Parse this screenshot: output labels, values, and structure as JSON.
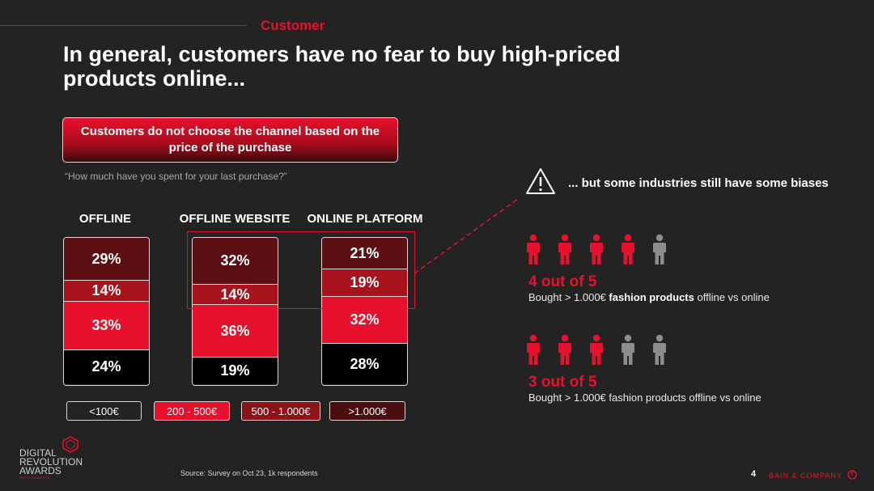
{
  "header": {
    "section": "Customer",
    "title_line1": "In general, customers have no fear to buy high-priced",
    "title_line2": "products online..."
  },
  "callout": {
    "line1": "Customers do not choose the channel based on the",
    "line2": "price of the purchase"
  },
  "question": "“How much have you spent for your last purchase?”",
  "chart_data": {
    "type": "bar",
    "stacked": true,
    "normalized": true,
    "categories": [
      "OFFLINE",
      "OFFLINE WEBSITE",
      "ONLINE PLATFORM"
    ],
    "series": [
      {
        "name": "<100€",
        "values": [
          29,
          32,
          21
        ],
        "color": "#5c1013"
      },
      {
        "name": "200 - 500€",
        "values": [
          14,
          14,
          19
        ],
        "color": "#a8141d"
      },
      {
        "name": "500 - 1.000€",
        "values": [
          33,
          36,
          32
        ],
        "color": "#e8112d"
      },
      {
        "name": ">1.000€",
        "values": [
          24,
          19,
          28
        ],
        "color": "#000000"
      }
    ],
    "labels": [
      [
        "29%",
        "14%",
        "33%",
        "24%"
      ],
      [
        "32%",
        "14%",
        "36%",
        "19%"
      ],
      [
        "21%",
        "19%",
        "32%",
        "28%"
      ]
    ],
    "legend_placement": "bottom"
  },
  "legend": [
    {
      "label": "<100€",
      "bg": "transparent"
    },
    {
      "label": "200 - 500€",
      "bg": "#e8112d"
    },
    {
      "label": "500 - 1.000€",
      "bg": "#8a1418"
    },
    {
      "label": ">1.000€",
      "bg": "#4a0d10"
    }
  ],
  "bias": {
    "headline": "... but some industries still have some biases",
    "warning_icon": "warning-triangle-icon",
    "stats": [
      {
        "big": "4 out of 5",
        "desc_pre": "Bought > 1.000€ ",
        "desc_bold": "fashion products",
        "desc_post": " offline vs online",
        "highlighted": 4,
        "total": 5
      },
      {
        "big": "3 out of 5",
        "desc_pre": "Bought > 1.000€ fashion products offline vs online",
        "desc_bold": "",
        "desc_post": "",
        "highlighted": 3,
        "total": 5
      }
    ]
  },
  "footer": {
    "source": "Source: Survey on Oct 23, 1k respondents",
    "page": "4",
    "brand": "BAIN & COMPANY",
    "logo_line1": "DIGITAL",
    "logo_line2": "REVOLUTION",
    "logo_line3": "AWARDS",
    "logo_sub": "FOR E-COMMERCE"
  },
  "colors": {
    "accent": "#e8112d",
    "background": "#232323"
  }
}
